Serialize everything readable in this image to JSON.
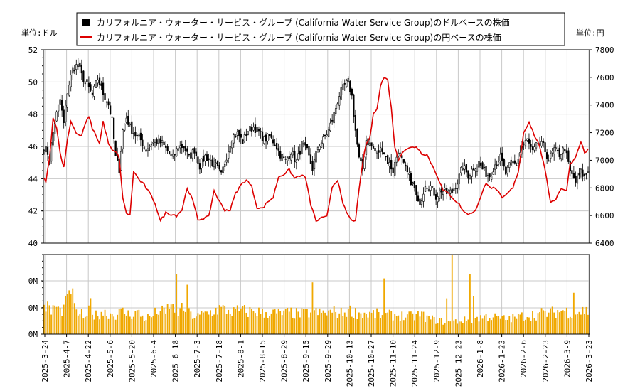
{
  "chart_data": {
    "type": "candlestick",
    "legend": {
      "items": [
        {
          "label": "カリフォルニア・ウォーター・サービス・グループ (California Water Service Group)のドルベースの株価",
          "color": "#000000",
          "marker": "square"
        },
        {
          "label": "カリフォルニア・ウォーター・サービス・グループ (California Water Service Group)の円ベースの株価",
          "color": "#dd0000",
          "marker": "line"
        }
      ],
      "placement": "top-center"
    },
    "price_panel": {
      "left_unit_label": "単位:ドル",
      "right_unit_label": "単位:円",
      "left_axis": {
        "min": 40,
        "max": 52,
        "ticks": [
          "40",
          "42",
          "44",
          "46",
          "48",
          "50",
          "52"
        ]
      },
      "right_axis": {
        "min": 6400,
        "max": 7800,
        "ticks": [
          "6400",
          "6600",
          "6800",
          "7000",
          "7200",
          "7400",
          "7600",
          "7800"
        ]
      },
      "grid": true
    },
    "volume_panel": {
      "ticks": [
        "0M",
        "0M",
        "0M"
      ],
      "bar_color": "#f0a800",
      "grid": true
    },
    "x_tick_labels": [
      "2025-3-24",
      "2025-4-7",
      "2025-4-22",
      "2025-5-6",
      "2025-5-20",
      "2025-6-4",
      "2025-6-18",
      "2025-7-3",
      "2025-7-18",
      "2025-8-1",
      "2025-8-15",
      "2025-8-29",
      "2025-9-15",
      "2025-9-29",
      "2025-10-13",
      "2025-10-27",
      "2025-11-10",
      "2025-11-24",
      "2025-12-9",
      "2025-12-23",
      "2026-1-8",
      "2026-1-23",
      "2026-2-6",
      "2026-2-23",
      "2026-3-9",
      "2026-3-23"
    ],
    "usd_close_anchors": [
      [
        0,
        46.0
      ],
      [
        3,
        45.4
      ],
      [
        6,
        47.6
      ],
      [
        9,
        48.9
      ],
      [
        11,
        47.4
      ],
      [
        13,
        49.4
      ],
      [
        16,
        50.8
      ],
      [
        19,
        51.1
      ],
      [
        21,
        50.4
      ],
      [
        24,
        49.8
      ],
      [
        27,
        49.2
      ],
      [
        30,
        50.2
      ],
      [
        33,
        49.3
      ],
      [
        36,
        48.6
      ],
      [
        38,
        47.6
      ],
      [
        40,
        45.3
      ],
      [
        42,
        44.6
      ],
      [
        44,
        47.0
      ],
      [
        46,
        47.8
      ],
      [
        48,
        47.2
      ],
      [
        51,
        46.7
      ],
      [
        54,
        46.4
      ],
      [
        57,
        45.8
      ],
      [
        60,
        46.2
      ],
      [
        63,
        46.3
      ],
      [
        66,
        46.2
      ],
      [
        69,
        45.7
      ],
      [
        72,
        45.3
      ],
      [
        75,
        46.0
      ],
      [
        78,
        46.0
      ],
      [
        81,
        45.3
      ],
      [
        84,
        45.8
      ],
      [
        87,
        44.8
      ],
      [
        90,
        45.4
      ],
      [
        93,
        45.1
      ],
      [
        96,
        44.8
      ],
      [
        99,
        44.2
      ],
      [
        102,
        45.4
      ],
      [
        105,
        46.6
      ],
      [
        108,
        46.8
      ],
      [
        111,
        46.3
      ],
      [
        114,
        47.0
      ],
      [
        117,
        47.2
      ],
      [
        120,
        46.9
      ],
      [
        123,
        46.4
      ],
      [
        126,
        46.6
      ],
      [
        129,
        46.2
      ],
      [
        132,
        45.5
      ],
      [
        135,
        45.1
      ],
      [
        138,
        45.7
      ],
      [
        141,
        45.0
      ],
      [
        144,
        46.1
      ],
      [
        147,
        45.7
      ],
      [
        150,
        44.6
      ],
      [
        153,
        46.0
      ],
      [
        156,
        46.4
      ],
      [
        159,
        47.0
      ],
      [
        162,
        48.0
      ],
      [
        165,
        49.2
      ],
      [
        168,
        49.8
      ],
      [
        170,
        50.0
      ],
      [
        172,
        49.1
      ],
      [
        174,
        47.0
      ],
      [
        176,
        45.2
      ],
      [
        178,
        44.6
      ],
      [
        180,
        46.4
      ],
      [
        183,
        46.0
      ],
      [
        186,
        45.6
      ],
      [
        189,
        45.9
      ],
      [
        192,
        45.1
      ],
      [
        195,
        44.5
      ],
      [
        198,
        45.8
      ],
      [
        201,
        44.8
      ],
      [
        204,
        44.1
      ],
      [
        207,
        43.4
      ],
      [
        209,
        42.4
      ],
      [
        211,
        42.8
      ],
      [
        213,
        43.7
      ],
      [
        216,
        43.5
      ],
      [
        219,
        42.9
      ],
      [
        222,
        43.3
      ],
      [
        225,
        43.1
      ],
      [
        228,
        43.2
      ],
      [
        231,
        43.8
      ],
      [
        234,
        44.8
      ],
      [
        237,
        44.2
      ],
      [
        240,
        44.7
      ],
      [
        243,
        45.0
      ],
      [
        246,
        44.4
      ],
      [
        249,
        44.2
      ],
      [
        252,
        44.9
      ],
      [
        255,
        45.3
      ],
      [
        258,
        44.3
      ],
      [
        261,
        45.0
      ],
      [
        264,
        44.9
      ],
      [
        267,
        46.0
      ],
      [
        270,
        46.4
      ],
      [
        273,
        45.6
      ],
      [
        276,
        46.2
      ],
      [
        279,
        46.0
      ],
      [
        282,
        45.2
      ],
      [
        285,
        45.8
      ],
      [
        288,
        45.5
      ],
      [
        291,
        45.9
      ],
      [
        294,
        44.4
      ],
      [
        297,
        43.8
      ],
      [
        300,
        44.4
      ],
      [
        302,
        44.1
      ],
      [
        304,
        44.5
      ]
    ],
    "jpy_close_anchors": [
      [
        0,
        6880
      ],
      [
        1,
        6840
      ],
      [
        3,
        7020
      ],
      [
        5,
        7300
      ],
      [
        7,
        7240
      ],
      [
        9,
        7050
      ],
      [
        11,
        6950
      ],
      [
        13,
        7150
      ],
      [
        15,
        7280
      ],
      [
        17,
        7220
      ],
      [
        19,
        7180
      ],
      [
        21,
        7180
      ],
      [
        23,
        7260
      ],
      [
        25,
        7320
      ],
      [
        27,
        7230
      ],
      [
        29,
        7180
      ],
      [
        31,
        7120
      ],
      [
        33,
        7280
      ],
      [
        36,
        7120
      ],
      [
        38,
        7070
      ],
      [
        40,
        7060
      ],
      [
        42,
        7020
      ],
      [
        44,
        6720
      ],
      [
        46,
        6620
      ],
      [
        48,
        6600
      ],
      [
        50,
        6920
      ],
      [
        53,
        6860
      ],
      [
        56,
        6820
      ],
      [
        59,
        6760
      ],
      [
        62,
        6690
      ],
      [
        65,
        6560
      ],
      [
        68,
        6620
      ],
      [
        71,
        6610
      ],
      [
        74,
        6600
      ],
      [
        77,
        6640
      ],
      [
        80,
        6800
      ],
      [
        83,
        6710
      ],
      [
        86,
        6570
      ],
      [
        89,
        6580
      ],
      [
        92,
        6590
      ],
      [
        95,
        6780
      ],
      [
        98,
        6700
      ],
      [
        101,
        6640
      ],
      [
        104,
        6640
      ],
      [
        107,
        6760
      ],
      [
        110,
        6820
      ],
      [
        113,
        6860
      ],
      [
        116,
        6810
      ],
      [
        119,
        6660
      ],
      [
        122,
        6650
      ],
      [
        125,
        6700
      ],
      [
        128,
        6730
      ],
      [
        131,
        6880
      ],
      [
        134,
        6900
      ],
      [
        137,
        6930
      ],
      [
        140,
        6870
      ],
      [
        143,
        6890
      ],
      [
        146,
        6880
      ],
      [
        149,
        6680
      ],
      [
        152,
        6560
      ],
      [
        155,
        6580
      ],
      [
        158,
        6590
      ],
      [
        161,
        6810
      ],
      [
        164,
        6860
      ],
      [
        167,
        6680
      ],
      [
        170,
        6600
      ],
      [
        172,
        6560
      ],
      [
        174,
        6570
      ],
      [
        176,
        6780
      ],
      [
        178,
        6980
      ],
      [
        180,
        7120
      ],
      [
        182,
        7160
      ],
      [
        184,
        7330
      ],
      [
        186,
        7380
      ],
      [
        188,
        7540
      ],
      [
        190,
        7600
      ],
      [
        192,
        7580
      ],
      [
        194,
        7380
      ],
      [
        196,
        7100
      ],
      [
        198,
        7000
      ],
      [
        200,
        7060
      ],
      [
        202,
        7080
      ],
      [
        205,
        7090
      ],
      [
        208,
        7100
      ],
      [
        211,
        7050
      ],
      [
        214,
        7040
      ],
      [
        217,
        6960
      ],
      [
        220,
        6880
      ],
      [
        223,
        6780
      ],
      [
        226,
        6760
      ],
      [
        229,
        6720
      ],
      [
        232,
        6680
      ],
      [
        235,
        6620
      ],
      [
        238,
        6610
      ],
      [
        241,
        6640
      ],
      [
        244,
        6730
      ],
      [
        247,
        6840
      ],
      [
        250,
        6800
      ],
      [
        253,
        6790
      ],
      [
        256,
        6720
      ],
      [
        259,
        6760
      ],
      [
        262,
        6800
      ],
      [
        265,
        6920
      ],
      [
        268,
        7200
      ],
      [
        271,
        7280
      ],
      [
        274,
        7180
      ],
      [
        277,
        7100
      ],
      [
        280,
        6920
      ],
      [
        283,
        6700
      ],
      [
        286,
        6720
      ],
      [
        289,
        6800
      ],
      [
        292,
        6780
      ],
      [
        294,
        6980
      ],
      [
        296,
        7000
      ],
      [
        298,
        7060
      ],
      [
        300,
        7140
      ],
      [
        302,
        7050
      ],
      [
        304,
        7080
      ]
    ],
    "volume_anchors": [
      [
        0,
        0.38
      ],
      [
        4,
        0.28
      ],
      [
        6,
        0.36
      ],
      [
        9,
        0.28
      ],
      [
        11,
        0.33
      ],
      [
        13,
        0.42
      ],
      [
        15,
        0.62
      ],
      [
        16,
        0.45
      ],
      [
        18,
        0.25
      ],
      [
        20,
        0.28
      ],
      [
        22,
        0.22
      ],
      [
        24,
        0.18
      ],
      [
        26,
        0.42
      ],
      [
        28,
        0.22
      ],
      [
        32,
        0.28
      ],
      [
        36,
        0.26
      ],
      [
        40,
        0.25
      ],
      [
        44,
        0.28
      ],
      [
        48,
        0.24
      ],
      [
        52,
        0.28
      ],
      [
        56,
        0.2
      ],
      [
        60,
        0.22
      ],
      [
        64,
        0.3
      ],
      [
        68,
        0.26
      ],
      [
        70,
        0.38
      ],
      [
        74,
        0.26
      ],
      [
        78,
        0.32
      ],
      [
        82,
        0.24
      ],
      [
        86,
        0.22
      ],
      [
        90,
        0.26
      ],
      [
        94,
        0.28
      ],
      [
        98,
        0.32
      ],
      [
        102,
        0.3
      ],
      [
        106,
        0.28
      ],
      [
        110,
        0.3
      ],
      [
        114,
        0.28
      ],
      [
        118,
        0.3
      ],
      [
        122,
        0.26
      ],
      [
        126,
        0.27
      ],
      [
        130,
        0.26
      ],
      [
        134,
        0.26
      ],
      [
        138,
        0.27
      ],
      [
        142,
        0.25
      ],
      [
        146,
        0.26
      ],
      [
        150,
        0.28
      ],
      [
        154,
        0.26
      ],
      [
        158,
        0.27
      ],
      [
        162,
        0.28
      ],
      [
        166,
        0.26
      ],
      [
        170,
        0.3
      ],
      [
        174,
        0.27
      ],
      [
        178,
        0.26
      ],
      [
        182,
        0.25
      ],
      [
        186,
        0.25
      ],
      [
        190,
        0.23
      ],
      [
        194,
        0.24
      ],
      [
        198,
        0.24
      ],
      [
        202,
        0.22
      ],
      [
        206,
        0.22
      ],
      [
        210,
        0.25
      ],
      [
        214,
        0.2
      ],
      [
        218,
        0.18
      ],
      [
        222,
        0.16
      ],
      [
        226,
        0.15
      ],
      [
        230,
        0.16
      ],
      [
        234,
        0.17
      ],
      [
        238,
        0.18
      ],
      [
        242,
        0.2
      ],
      [
        246,
        0.22
      ],
      [
        250,
        0.22
      ],
      [
        254,
        0.2
      ],
      [
        258,
        0.19
      ],
      [
        262,
        0.2
      ],
      [
        266,
        0.22
      ],
      [
        270,
        0.24
      ],
      [
        274,
        0.24
      ],
      [
        278,
        0.26
      ],
      [
        282,
        0.26
      ],
      [
        286,
        0.28
      ],
      [
        290,
        0.3
      ],
      [
        294,
        0.27
      ],
      [
        298,
        0.28
      ],
      [
        302,
        0.3
      ],
      [
        304,
        0.28
      ]
    ],
    "volume_spikes": [
      [
        74,
        0.75
      ],
      [
        80,
        0.62
      ],
      [
        150,
        0.65
      ],
      [
        190,
        0.7
      ],
      [
        225,
        0.45
      ],
      [
        238,
        0.75
      ],
      [
        228,
        1.0
      ],
      [
        240,
        0.48
      ],
      [
        296,
        0.52
      ],
      [
        14,
        0.55
      ]
    ],
    "n_points": 305
  }
}
